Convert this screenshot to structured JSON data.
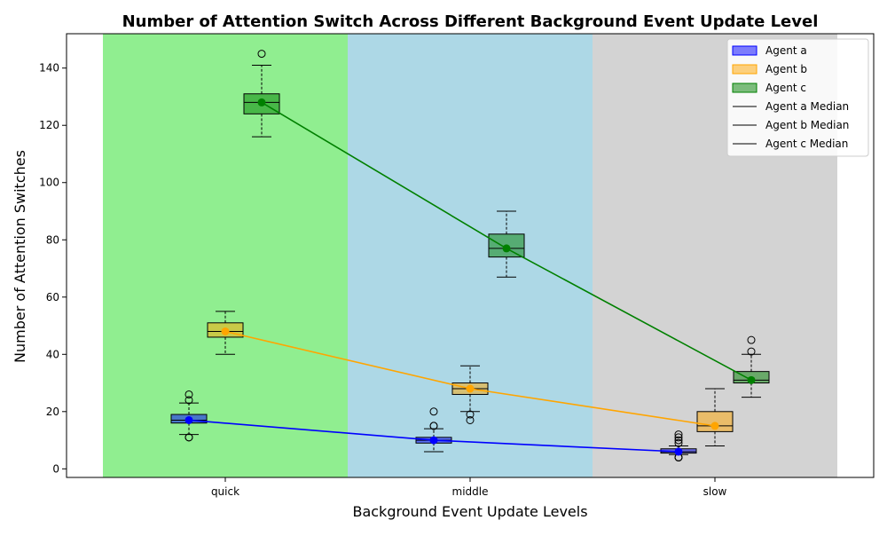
{
  "chart_data": {
    "type": "box",
    "title": "Number of Attention Switch Across Different Background Event Update Level",
    "xlabel": "Background Event Update Levels",
    "ylabel": "Number of Attention Switches",
    "categories": [
      "quick",
      "middle",
      "slow"
    ],
    "ylim": [
      -3,
      152
    ],
    "yticks": [
      0,
      20,
      40,
      60,
      80,
      100,
      120,
      140
    ],
    "grid": false,
    "legend_position": "top-right",
    "band_colors": [
      "#90ee90",
      "#add8e6",
      "#d3d3d3"
    ],
    "series": [
      {
        "name": "Agent a",
        "box_color": "#0000ff",
        "line_color": "#0000ff",
        "boxes": [
          {
            "whisker_low": 12,
            "q1": 16,
            "median": 17,
            "q3": 19,
            "whisker_high": 23,
            "outliers": [
              26,
              24,
              11,
              11
            ]
          },
          {
            "whisker_low": 6,
            "q1": 9,
            "median": 10,
            "q3": 11,
            "whisker_high": 14,
            "outliers": [
              20,
              15,
              15
            ]
          },
          {
            "whisker_low": 5,
            "q1": 5.5,
            "median": 6,
            "q3": 7,
            "whisker_high": 8,
            "outliers": [
              12,
              11,
              10,
              9,
              4,
              4,
              4
            ]
          }
        ]
      },
      {
        "name": "Agent b",
        "box_color": "#ffa500",
        "line_color": "#ffa500",
        "boxes": [
          {
            "whisker_low": 40,
            "q1": 46,
            "median": 48,
            "q3": 51,
            "whisker_high": 55,
            "outliers": []
          },
          {
            "whisker_low": 20,
            "q1": 26,
            "median": 28,
            "q3": 30,
            "whisker_high": 36,
            "outliers": [
              19,
              17
            ]
          },
          {
            "whisker_low": 8,
            "q1": 13,
            "median": 15,
            "q3": 20,
            "whisker_high": 28,
            "outliers": []
          }
        ]
      },
      {
        "name": "Agent c",
        "box_color": "#008000",
        "line_color": "#008000",
        "boxes": [
          {
            "whisker_low": 116,
            "q1": 124,
            "median": 128,
            "q3": 131,
            "whisker_high": 141,
            "outliers": [
              145
            ]
          },
          {
            "whisker_low": 67,
            "q1": 74,
            "median": 77,
            "q3": 82,
            "whisker_high": 90,
            "outliers": []
          },
          {
            "whisker_low": 25,
            "q1": 30,
            "median": 31,
            "q3": 34,
            "whisker_high": 40,
            "outliers": [
              45,
              41
            ]
          }
        ]
      }
    ],
    "legend": [
      "Agent a",
      "Agent b",
      "Agent c",
      "Agent a Median",
      "Agent b Median",
      "Agent c Median"
    ]
  }
}
